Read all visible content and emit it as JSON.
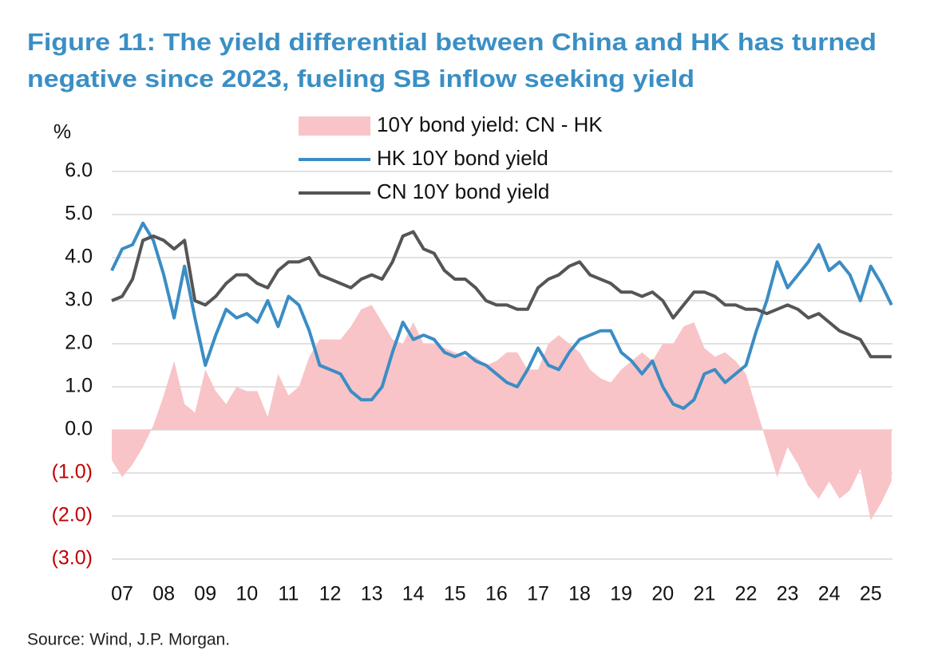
{
  "chart_data": {
    "type": "line",
    "title": [
      "Figure 11: The yield differential between China and HK has turned",
      "negative since 2023, fueling SB inflow seeking yield"
    ],
    "y_label": "%",
    "source": "Source: Wind, J.P. Morgan.",
    "x": [
      2006.75,
      2007.0,
      2007.25,
      2007.5,
      2007.75,
      2008.0,
      2008.25,
      2008.5,
      2008.75,
      2009.0,
      2009.25,
      2009.5,
      2009.75,
      2010.0,
      2010.25,
      2010.5,
      2010.75,
      2011.0,
      2011.25,
      2011.5,
      2011.75,
      2012.0,
      2012.25,
      2012.5,
      2012.75,
      2013.0,
      2013.25,
      2013.5,
      2013.75,
      2014.0,
      2014.25,
      2014.5,
      2014.75,
      2015.0,
      2015.25,
      2015.5,
      2015.75,
      2016.0,
      2016.25,
      2016.5,
      2016.75,
      2017.0,
      2017.25,
      2017.5,
      2017.75,
      2018.0,
      2018.25,
      2018.5,
      2018.75,
      2019.0,
      2019.25,
      2019.5,
      2019.75,
      2020.0,
      2020.25,
      2020.5,
      2020.75,
      2021.0,
      2021.25,
      2021.5,
      2021.75,
      2022.0,
      2022.25,
      2022.5,
      2022.75,
      2023.0,
      2023.25,
      2023.5,
      2023.75,
      2024.0,
      2024.25,
      2024.5,
      2024.75,
      2025.0,
      2025.25,
      2025.5
    ],
    "series": [
      {
        "name": "10Y bond yield: CN - HK",
        "kind": "area",
        "color": "#f8c4c8",
        "values": [
          -0.7,
          -1.1,
          -0.8,
          -0.4,
          0.1,
          0.8,
          1.6,
          0.6,
          0.4,
          1.4,
          0.9,
          0.6,
          1.0,
          0.9,
          0.9,
          0.3,
          1.3,
          0.8,
          1.0,
          1.7,
          2.1,
          2.1,
          2.1,
          2.4,
          2.8,
          2.9,
          2.5,
          2.1,
          2.0,
          2.5,
          2.0,
          2.0,
          1.9,
          1.8,
          1.7,
          1.7,
          1.5,
          1.6,
          1.8,
          1.8,
          1.4,
          1.4,
          2.0,
          2.2,
          2.0,
          1.8,
          1.4,
          1.2,
          1.1,
          1.4,
          1.6,
          1.8,
          1.6,
          2.0,
          2.0,
          2.4,
          2.5,
          1.9,
          1.7,
          1.8,
          1.6,
          1.3,
          0.5,
          -0.3,
          -1.1,
          -0.4,
          -0.8,
          -1.3,
          -1.6,
          -1.2,
          -1.6,
          -1.4,
          -0.9,
          -2.1,
          -1.7,
          -1.2
        ]
      },
      {
        "name": "HK 10Y bond yield",
        "kind": "line",
        "color": "#3b8dc4",
        "values": [
          3.7,
          4.2,
          4.3,
          4.8,
          4.4,
          3.6,
          2.6,
          3.8,
          2.6,
          1.5,
          2.2,
          2.8,
          2.6,
          2.7,
          2.5,
          3.0,
          2.4,
          3.1,
          2.9,
          2.3,
          1.5,
          1.4,
          1.3,
          0.9,
          0.7,
          0.7,
          1.0,
          1.8,
          2.5,
          2.1,
          2.2,
          2.1,
          1.8,
          1.7,
          1.8,
          1.6,
          1.5,
          1.3,
          1.1,
          1.0,
          1.4,
          1.9,
          1.5,
          1.4,
          1.8,
          2.1,
          2.2,
          2.3,
          2.3,
          1.8,
          1.6,
          1.3,
          1.6,
          1.0,
          0.6,
          0.5,
          0.7,
          1.3,
          1.4,
          1.1,
          1.3,
          1.5,
          2.3,
          3.0,
          3.9,
          3.3,
          3.6,
          3.9,
          4.3,
          3.7,
          3.9,
          3.6,
          3.0,
          3.8,
          3.4,
          2.9
        ]
      },
      {
        "name": "CN 10Y bond yield",
        "kind": "line",
        "color": "#555555",
        "values": [
          3.0,
          3.1,
          3.5,
          4.4,
          4.5,
          4.4,
          4.2,
          4.4,
          3.0,
          2.9,
          3.1,
          3.4,
          3.6,
          3.6,
          3.4,
          3.3,
          3.7,
          3.9,
          3.9,
          4.0,
          3.6,
          3.5,
          3.4,
          3.3,
          3.5,
          3.6,
          3.5,
          3.9,
          4.5,
          4.6,
          4.2,
          4.1,
          3.7,
          3.5,
          3.5,
          3.3,
          3.0,
          2.9,
          2.9,
          2.8,
          2.8,
          3.3,
          3.5,
          3.6,
          3.8,
          3.9,
          3.6,
          3.5,
          3.4,
          3.2,
          3.2,
          3.1,
          3.2,
          3.0,
          2.6,
          2.9,
          3.2,
          3.2,
          3.1,
          2.9,
          2.9,
          2.8,
          2.8,
          2.7,
          2.8,
          2.9,
          2.8,
          2.6,
          2.7,
          2.5,
          2.3,
          2.2,
          2.1,
          1.7,
          1.7,
          1.7
        ]
      }
    ],
    "xlim": [
      2006.75,
      2025.6
    ],
    "xticks": [
      {
        "value": 2007,
        "label": "07"
      },
      {
        "value": 2008,
        "label": "08"
      },
      {
        "value": 2009,
        "label": "09"
      },
      {
        "value": 2010,
        "label": "10"
      },
      {
        "value": 2011,
        "label": "11"
      },
      {
        "value": 2012,
        "label": "12"
      },
      {
        "value": 2013,
        "label": "13"
      },
      {
        "value": 2014,
        "label": "14"
      },
      {
        "value": 2015,
        "label": "15"
      },
      {
        "value": 2016,
        "label": "16"
      },
      {
        "value": 2017,
        "label": "17"
      },
      {
        "value": 2018,
        "label": "18"
      },
      {
        "value": 2019,
        "label": "19"
      },
      {
        "value": 2020,
        "label": "20"
      },
      {
        "value": 2021,
        "label": "21"
      },
      {
        "value": 2022,
        "label": "22"
      },
      {
        "value": 2023,
        "label": "23"
      },
      {
        "value": 2024,
        "label": "24"
      },
      {
        "value": 2025,
        "label": "25"
      }
    ],
    "ylim": [
      -3,
      6
    ],
    "yticks": [
      {
        "value": 6,
        "label": "6.0"
      },
      {
        "value": 5,
        "label": "5.0"
      },
      {
        "value": 4,
        "label": "4.0"
      },
      {
        "value": 3,
        "label": "3.0"
      },
      {
        "value": 2,
        "label": "2.0"
      },
      {
        "value": 1,
        "label": "1.0"
      },
      {
        "value": 0,
        "label": "0.0"
      },
      {
        "value": -1,
        "label": "(1.0)"
      },
      {
        "value": -2,
        "label": "(2.0)"
      },
      {
        "value": -3,
        "label": "(3.0)"
      }
    ],
    "negative_tick_color": "#c00000",
    "grid": true,
    "legend": "top"
  }
}
